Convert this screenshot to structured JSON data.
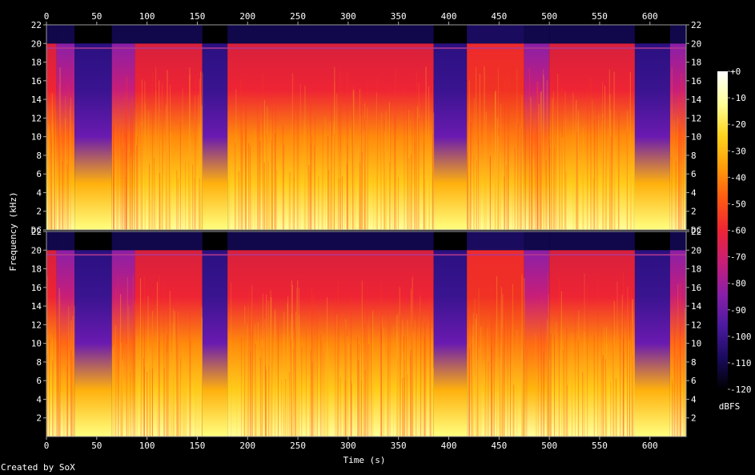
{
  "chart_data": {
    "type": "heatmap",
    "title": "",
    "xlabel": "Time (s)",
    "ylabel": "Frequency (kHz)",
    "xlim": [
      0,
      636
    ],
    "x_ticks": [
      0,
      50,
      100,
      150,
      200,
      250,
      300,
      350,
      400,
      450,
      500,
      550,
      600
    ],
    "channels": [
      {
        "name": "",
        "ylim": [
          0,
          22
        ],
        "y_ticks": [
          "DC",
          "2",
          "4",
          "6",
          "8",
          "10",
          "12",
          "14",
          "16",
          "18",
          "20",
          "22"
        ]
      },
      {
        "name": "",
        "ylim": [
          0,
          22
        ],
        "y_ticks": [
          "2",
          "4",
          "6",
          "8",
          "10",
          "12",
          "14",
          "16",
          "18",
          "20",
          "22"
        ]
      }
    ],
    "colorbar": {
      "label": "dBFS",
      "range": [
        -120,
        0
      ],
      "ticks": [
        "+0",
        "-10",
        "-20",
        "-30",
        "-40",
        "-50",
        "-60",
        "-70",
        "-80",
        "-90",
        "-100",
        "-110",
        "-120"
      ],
      "colors": [
        "#000000",
        "#1a0b5e",
        "#4b1aa0",
        "#8a1fa8",
        "#c81e78",
        "#ee2434",
        "#ff5a12",
        "#ff9d0a",
        "#ffd41e",
        "#ffff9a",
        "#ffffff"
      ]
    },
    "segments": [
      {
        "start": 0,
        "end": 10,
        "level": "loud"
      },
      {
        "start": 10,
        "end": 28,
        "level": "medium"
      },
      {
        "start": 28,
        "end": 65,
        "level": "quiet"
      },
      {
        "start": 65,
        "end": 88,
        "level": "medium"
      },
      {
        "start": 88,
        "end": 155,
        "level": "loud"
      },
      {
        "start": 155,
        "end": 180,
        "level": "quiet"
      },
      {
        "start": 180,
        "end": 385,
        "level": "loud"
      },
      {
        "start": 385,
        "end": 418,
        "level": "quiet"
      },
      {
        "start": 418,
        "end": 475,
        "level": "very_loud"
      },
      {
        "start": 475,
        "end": 500,
        "level": "medium"
      },
      {
        "start": 500,
        "end": 585,
        "level": "loud"
      },
      {
        "start": 585,
        "end": 620,
        "level": "quiet"
      },
      {
        "start": 620,
        "end": 636,
        "level": "medium"
      }
    ]
  },
  "footer": {
    "credit": "Created by SoX"
  }
}
